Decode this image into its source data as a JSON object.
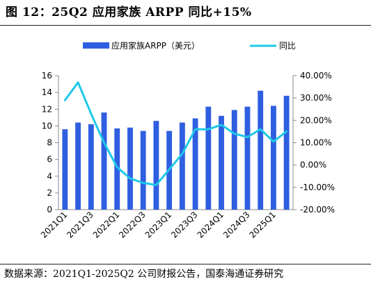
{
  "header": {
    "title": "图 12：25Q2 应用家族 ARPP 同比+15%"
  },
  "footer": {
    "source": "数据来源：2021Q1-2025Q2 公司财报公告，国泰海通证券研究"
  },
  "chart_data": {
    "type": "bar",
    "categories": [
      "2021Q1",
      "2021Q2",
      "2021Q3",
      "2021Q4",
      "2022Q1",
      "2022Q2",
      "2022Q3",
      "2022Q4",
      "2023Q1",
      "2023Q2",
      "2023Q3",
      "2023Q4",
      "2024Q1",
      "2024Q2",
      "2024Q3",
      "2024Q4",
      "2025Q1",
      "2025Q2"
    ],
    "x_tick_labels": [
      "2021Q1",
      "2021Q3",
      "2022Q1",
      "2022Q3",
      "2023Q1",
      "2023Q3",
      "2024Q1",
      "2024Q3",
      "2025Q1"
    ],
    "series": [
      {
        "name": "应用家族ARPP（美元）",
        "type": "bar",
        "axis": "left",
        "color": "#2F5FE0",
        "values": [
          9.6,
          10.4,
          10.2,
          11.6,
          9.7,
          9.8,
          9.4,
          10.6,
          9.4,
          10.4,
          10.9,
          12.3,
          11.2,
          11.9,
          12.3,
          14.2,
          12.4,
          13.6
        ]
      },
      {
        "name": "同比",
        "type": "line",
        "axis": "right",
        "color": "#1EC8E8",
        "values": [
          29,
          37,
          23,
          10,
          -1,
          -6,
          -8,
          -9,
          -2,
          5,
          16,
          16,
          18,
          14,
          12.5,
          16,
          10.5,
          15
        ]
      }
    ],
    "y_left": {
      "min": 0,
      "max": 16,
      "ticks": [
        0,
        2,
        4,
        6,
        8,
        10,
        12,
        14,
        16
      ]
    },
    "y_right": {
      "min": -20,
      "max": 40,
      "ticks": [
        -20,
        -10,
        0,
        10,
        20,
        30,
        40
      ],
      "tick_labels": [
        "-20.00%",
        "-10.00%",
        "0.00%",
        "10.00%",
        "20.00%",
        "30.00%",
        "40.00%"
      ]
    },
    "grid": false,
    "legend_position": "top-center"
  }
}
